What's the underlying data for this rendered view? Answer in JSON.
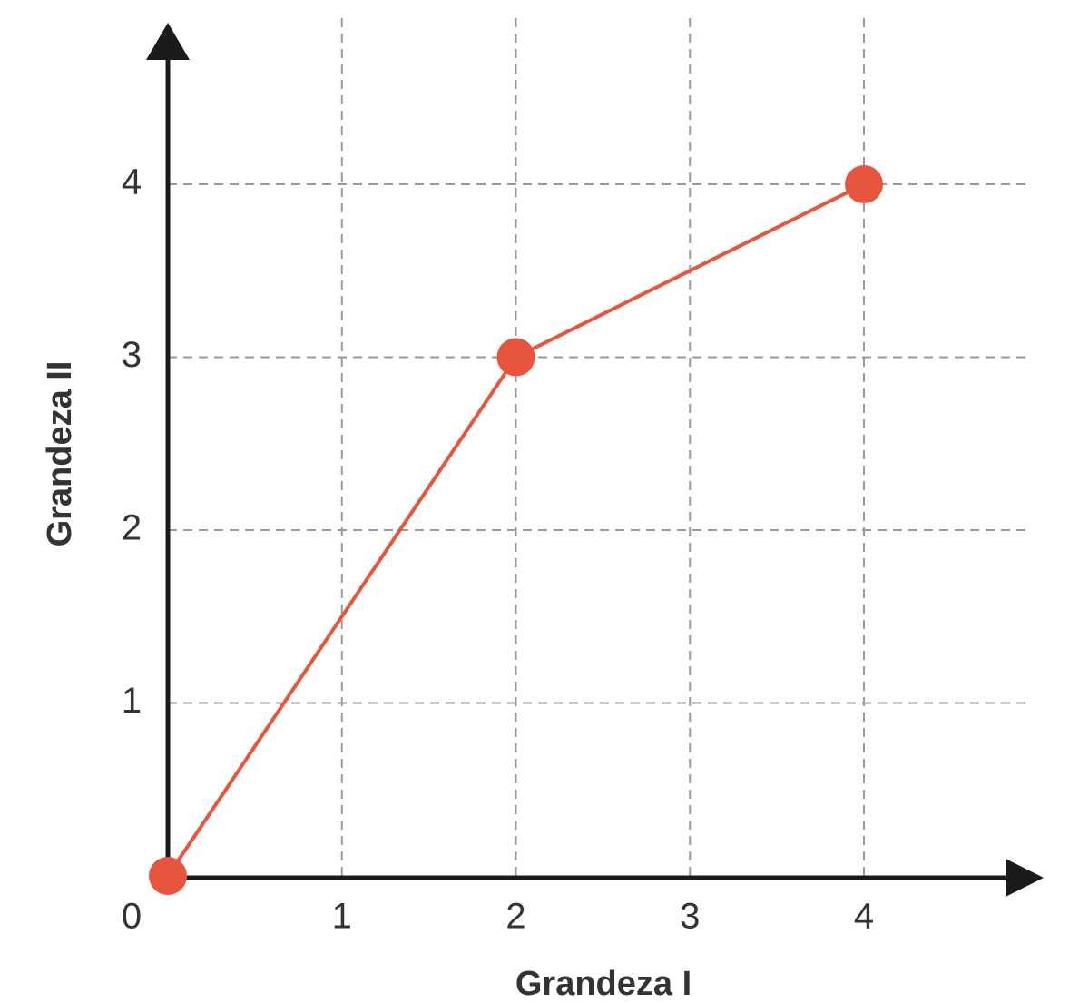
{
  "chart_data": {
    "type": "line",
    "x_label": "Grandeza I",
    "y_label": "Grandeza II",
    "x": [
      0,
      2,
      4
    ],
    "values": [
      0,
      3,
      4
    ],
    "color": "#e8553f",
    "xlim": [
      0,
      5
    ],
    "ylim": [
      0,
      5
    ],
    "xticks": [
      0,
      1,
      2,
      3,
      4
    ],
    "yticks": [
      1,
      2,
      3,
      4
    ],
    "grid": true
  }
}
